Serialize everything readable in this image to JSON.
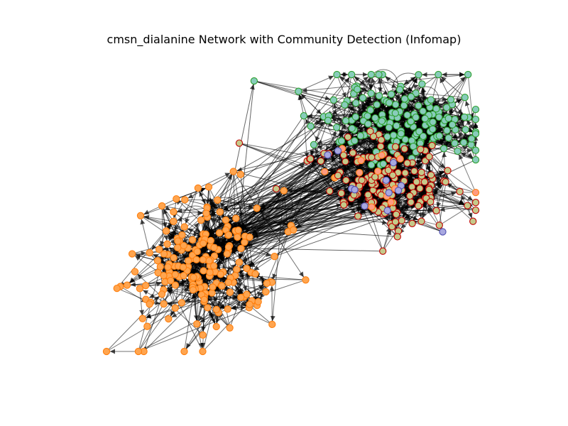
{
  "figure": {
    "title": "cmsn_dialanine Network with Community Detection (Infomap)"
  },
  "network": {
    "layout": "spring",
    "edge_color": "#000000",
    "arrows": true,
    "communities": [
      {
        "id": 1,
        "fill": "#FFA54F",
        "edge": "#FF7F0E",
        "node_count": 190,
        "region": "lower-left"
      },
      {
        "id": 2,
        "fill": "#88CCBB",
        "edge": "#2CA02C",
        "node_count": 170,
        "region": "upper-right"
      },
      {
        "id": 3,
        "fill": "#C5C98A",
        "edge": "#C00000",
        "node_count": 160,
        "region": "right-middle"
      },
      {
        "id": 4,
        "fill": "#FF9B80",
        "edge": "#FF7F0E",
        "node_count": 12,
        "region": "right-middle"
      },
      {
        "id": 5,
        "fill": "#A8A8E0",
        "edge": "#5050B0",
        "node_count": 12,
        "region": "right-middle"
      }
    ]
  }
}
